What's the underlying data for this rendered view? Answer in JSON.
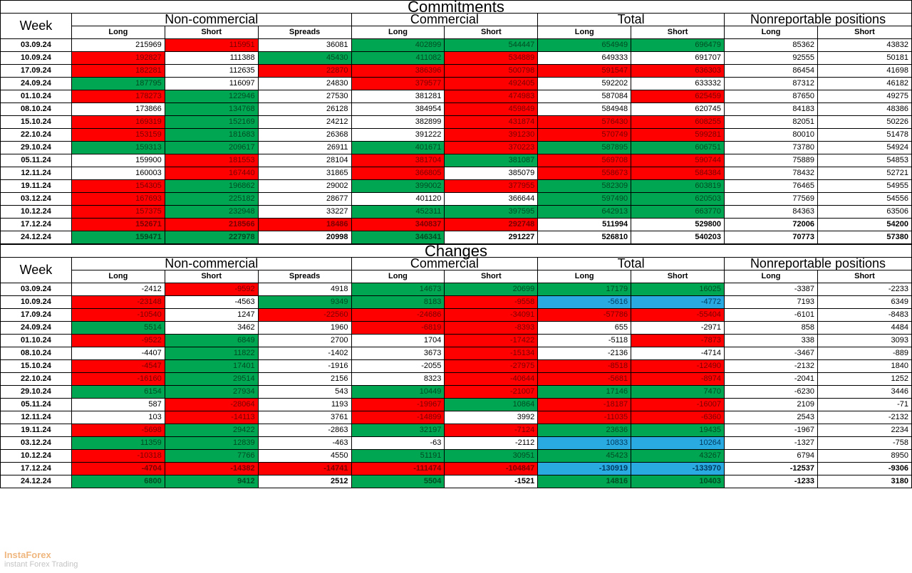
{
  "titles": {
    "t1": "Commitments",
    "t2": "Changes"
  },
  "headers": {
    "week": "Week",
    "groups": [
      "Non-commercial",
      "Commercial",
      "Total",
      "Nonreportable positions"
    ],
    "subs": [
      "Long",
      "Short",
      "Spreads",
      "Long",
      "Short",
      "Long",
      "Short",
      "Long",
      "Short"
    ]
  },
  "colors": {
    "red": "#ff0000",
    "green": "#00a651",
    "blue": "#29abe2"
  },
  "watermark": {
    "brand": "InstaForex",
    "tag": "instant Forex Trading"
  },
  "commitments": [
    {
      "wk": "03.09.24",
      "c": [
        [
          "215969",
          ""
        ],
        [
          "115951",
          "r"
        ],
        [
          "36081",
          ""
        ],
        [
          "402899",
          "g"
        ],
        [
          "544447",
          "g"
        ],
        [
          "654949",
          "g"
        ],
        [
          "696479",
          "g"
        ],
        [
          "85362",
          ""
        ],
        [
          "43832",
          ""
        ]
      ]
    },
    {
      "wk": "10.09.24",
      "c": [
        [
          "192827",
          "r"
        ],
        [
          "111388",
          ""
        ],
        [
          "45430",
          "g"
        ],
        [
          "411082",
          "g"
        ],
        [
          "534889",
          "r"
        ],
        [
          "649333",
          ""
        ],
        [
          "691707",
          ""
        ],
        [
          "92555",
          ""
        ],
        [
          "50181",
          ""
        ]
      ]
    },
    {
      "wk": "17.09.24",
      "c": [
        [
          "182281",
          "r"
        ],
        [
          "112635",
          ""
        ],
        [
          "22870",
          "r"
        ],
        [
          "386396",
          "r"
        ],
        [
          "500798",
          "r"
        ],
        [
          "591547",
          "r"
        ],
        [
          "636303",
          "r"
        ],
        [
          "86454",
          ""
        ],
        [
          "41698",
          ""
        ]
      ]
    },
    {
      "wk": "24.09.24",
      "c": [
        [
          "187795",
          "g"
        ],
        [
          "116097",
          ""
        ],
        [
          "24830",
          ""
        ],
        [
          "379577",
          "r"
        ],
        [
          "492405",
          "r"
        ],
        [
          "592202",
          ""
        ],
        [
          "633332",
          ""
        ],
        [
          "87312",
          ""
        ],
        [
          "46182",
          ""
        ]
      ]
    },
    {
      "wk": "01.10.24",
      "c": [
        [
          "178273",
          "r"
        ],
        [
          "122946",
          "g"
        ],
        [
          "27530",
          ""
        ],
        [
          "381281",
          ""
        ],
        [
          "474983",
          "r"
        ],
        [
          "587084",
          ""
        ],
        [
          "625459",
          "r"
        ],
        [
          "87650",
          ""
        ],
        [
          "49275",
          ""
        ]
      ]
    },
    {
      "wk": "08.10.24",
      "c": [
        [
          "173866",
          ""
        ],
        [
          "134768",
          "g"
        ],
        [
          "26128",
          ""
        ],
        [
          "384954",
          ""
        ],
        [
          "459849",
          "r"
        ],
        [
          "584948",
          ""
        ],
        [
          "620745",
          ""
        ],
        [
          "84183",
          ""
        ],
        [
          "48386",
          ""
        ]
      ]
    },
    {
      "wk": "15.10.24",
      "c": [
        [
          "169319",
          "r"
        ],
        [
          "152169",
          "g"
        ],
        [
          "24212",
          ""
        ],
        [
          "382899",
          ""
        ],
        [
          "431874",
          "r"
        ],
        [
          "576430",
          "r"
        ],
        [
          "608255",
          "r"
        ],
        [
          "82051",
          ""
        ],
        [
          "50226",
          ""
        ]
      ]
    },
    {
      "wk": "22.10.24",
      "c": [
        [
          "153159",
          "r"
        ],
        [
          "181683",
          "g"
        ],
        [
          "26368",
          ""
        ],
        [
          "391222",
          ""
        ],
        [
          "391230",
          "r"
        ],
        [
          "570749",
          "r"
        ],
        [
          "599281",
          "r"
        ],
        [
          "80010",
          ""
        ],
        [
          "51478",
          ""
        ]
      ]
    },
    {
      "wk": "29.10.24",
      "c": [
        [
          "159313",
          "g"
        ],
        [
          "209617",
          "g"
        ],
        [
          "26911",
          ""
        ],
        [
          "401671",
          "g"
        ],
        [
          "370223",
          "r"
        ],
        [
          "587895",
          "g"
        ],
        [
          "606751",
          "g"
        ],
        [
          "73780",
          ""
        ],
        [
          "54924",
          ""
        ]
      ]
    },
    {
      "wk": "05.11.24",
      "c": [
        [
          "159900",
          ""
        ],
        [
          "181553",
          "r"
        ],
        [
          "28104",
          ""
        ],
        [
          "381704",
          "r"
        ],
        [
          "381087",
          "g"
        ],
        [
          "569708",
          "r"
        ],
        [
          "590744",
          "r"
        ],
        [
          "75889",
          ""
        ],
        [
          "54853",
          ""
        ]
      ]
    },
    {
      "wk": "12.11.24",
      "c": [
        [
          "160003",
          ""
        ],
        [
          "167440",
          "r"
        ],
        [
          "31865",
          ""
        ],
        [
          "366805",
          "r"
        ],
        [
          "385079",
          ""
        ],
        [
          "558673",
          "r"
        ],
        [
          "584384",
          "r"
        ],
        [
          "78432",
          ""
        ],
        [
          "52721",
          ""
        ]
      ]
    },
    {
      "wk": "19.11.24",
      "c": [
        [
          "154305",
          "r"
        ],
        [
          "196862",
          "g"
        ],
        [
          "29002",
          ""
        ],
        [
          "399002",
          "g"
        ],
        [
          "377955",
          "r"
        ],
        [
          "582309",
          "g"
        ],
        [
          "603819",
          "g"
        ],
        [
          "76465",
          ""
        ],
        [
          "54955",
          ""
        ]
      ]
    },
    {
      "wk": "03.12.24",
      "c": [
        [
          "167693",
          "r"
        ],
        [
          "225182",
          "g"
        ],
        [
          "28677",
          ""
        ],
        [
          "401120",
          ""
        ],
        [
          "366644",
          ""
        ],
        [
          "597490",
          "g"
        ],
        [
          "620503",
          "g"
        ],
        [
          "77569",
          ""
        ],
        [
          "54556",
          ""
        ]
      ]
    },
    {
      "wk": "10.12.24",
      "c": [
        [
          "157375",
          "r"
        ],
        [
          "232948",
          "g"
        ],
        [
          "33227",
          ""
        ],
        [
          "452311",
          "g"
        ],
        [
          "397595",
          "g"
        ],
        [
          "642913",
          "g"
        ],
        [
          "663770",
          "g"
        ],
        [
          "84363",
          ""
        ],
        [
          "63506",
          ""
        ]
      ]
    },
    {
      "wk": "17.12.24",
      "c": [
        [
          "152671",
          "r"
        ],
        [
          "218566",
          "r"
        ],
        [
          "18486",
          "r"
        ],
        [
          "340837",
          "r"
        ],
        [
          "292748",
          "r"
        ],
        [
          "511994",
          ""
        ],
        [
          "529800",
          ""
        ],
        [
          "72006",
          ""
        ],
        [
          "54200",
          ""
        ]
      ],
      "bold": true
    },
    {
      "wk": "24.12.24",
      "c": [
        [
          "159471",
          "g"
        ],
        [
          "227978",
          "g"
        ],
        [
          "20998",
          ""
        ],
        [
          "346341",
          "g"
        ],
        [
          "291227",
          ""
        ],
        [
          "526810",
          ""
        ],
        [
          "540203",
          ""
        ],
        [
          "70773",
          ""
        ],
        [
          "57380",
          ""
        ]
      ],
      "bold": true
    }
  ],
  "changes": [
    {
      "wk": "03.09.24",
      "c": [
        [
          "-2412",
          ""
        ],
        [
          "-9592",
          "r"
        ],
        [
          "4918",
          ""
        ],
        [
          "14673",
          "g"
        ],
        [
          "20699",
          "g"
        ],
        [
          "17179",
          "g"
        ],
        [
          "16025",
          "g"
        ],
        [
          "-3387",
          ""
        ],
        [
          "-2233",
          ""
        ]
      ]
    },
    {
      "wk": "10.09.24",
      "c": [
        [
          "-23148",
          "r"
        ],
        [
          "-4563",
          ""
        ],
        [
          "9349",
          "g"
        ],
        [
          "8183",
          "g"
        ],
        [
          "-9558",
          "r"
        ],
        [
          "-5616",
          "b"
        ],
        [
          "-4772",
          "b"
        ],
        [
          "7193",
          ""
        ],
        [
          "6349",
          ""
        ]
      ]
    },
    {
      "wk": "17.09.24",
      "c": [
        [
          "-10540",
          "r"
        ],
        [
          "1247",
          ""
        ],
        [
          "-22560",
          "r"
        ],
        [
          "-24686",
          "r"
        ],
        [
          "-34091",
          "r"
        ],
        [
          "-57786",
          "r"
        ],
        [
          "-55404",
          "r"
        ],
        [
          "-6101",
          ""
        ],
        [
          "-8483",
          ""
        ]
      ]
    },
    {
      "wk": "24.09.24",
      "c": [
        [
          "5514",
          "g"
        ],
        [
          "3462",
          ""
        ],
        [
          "1960",
          ""
        ],
        [
          "-6819",
          "r"
        ],
        [
          "-8393",
          "r"
        ],
        [
          "655",
          ""
        ],
        [
          "-2971",
          ""
        ],
        [
          "858",
          ""
        ],
        [
          "4484",
          ""
        ]
      ]
    },
    {
      "wk": "01.10.24",
      "c": [
        [
          "-9522",
          "r"
        ],
        [
          "6849",
          "g"
        ],
        [
          "2700",
          ""
        ],
        [
          "1704",
          ""
        ],
        [
          "-17422",
          "r"
        ],
        [
          "-5118",
          ""
        ],
        [
          "-7873",
          "r"
        ],
        [
          "338",
          ""
        ],
        [
          "3093",
          ""
        ]
      ]
    },
    {
      "wk": "08.10.24",
      "c": [
        [
          "-4407",
          ""
        ],
        [
          "11822",
          "g"
        ],
        [
          "-1402",
          ""
        ],
        [
          "3673",
          ""
        ],
        [
          "-15134",
          "r"
        ],
        [
          "-2136",
          ""
        ],
        [
          "-4714",
          ""
        ],
        [
          "-3467",
          ""
        ],
        [
          "-889",
          ""
        ]
      ]
    },
    {
      "wk": "15.10.24",
      "c": [
        [
          "-4547",
          "r"
        ],
        [
          "17401",
          "g"
        ],
        [
          "-1916",
          ""
        ],
        [
          "-2055",
          ""
        ],
        [
          "-27975",
          "r"
        ],
        [
          "-8518",
          "r"
        ],
        [
          "-12490",
          "r"
        ],
        [
          "-2132",
          ""
        ],
        [
          "1840",
          ""
        ]
      ]
    },
    {
      "wk": "22.10.24",
      "c": [
        [
          "-16160",
          "r"
        ],
        [
          "29514",
          "g"
        ],
        [
          "2156",
          ""
        ],
        [
          "8323",
          ""
        ],
        [
          "-40644",
          "r"
        ],
        [
          "-5681",
          "r"
        ],
        [
          "-8974",
          "r"
        ],
        [
          "-2041",
          ""
        ],
        [
          "1252",
          ""
        ]
      ]
    },
    {
      "wk": "29.10.24",
      "c": [
        [
          "6154",
          "g"
        ],
        [
          "27934",
          "g"
        ],
        [
          "543",
          ""
        ],
        [
          "10449",
          "g"
        ],
        [
          "-21007",
          "r"
        ],
        [
          "17146",
          "g"
        ],
        [
          "7470",
          "g"
        ],
        [
          "-6230",
          ""
        ],
        [
          "3446",
          ""
        ]
      ]
    },
    {
      "wk": "05.11.24",
      "c": [
        [
          "587",
          ""
        ],
        [
          "-28064",
          "r"
        ],
        [
          "1193",
          ""
        ],
        [
          "-19967",
          "r"
        ],
        [
          "10864",
          "g"
        ],
        [
          "-18187",
          "r"
        ],
        [
          "-16007",
          "r"
        ],
        [
          "2109",
          ""
        ],
        [
          "-71",
          ""
        ]
      ]
    },
    {
      "wk": "12.11.24",
      "c": [
        [
          "103",
          ""
        ],
        [
          "-14113",
          "r"
        ],
        [
          "3761",
          ""
        ],
        [
          "-14899",
          "r"
        ],
        [
          "3992",
          ""
        ],
        [
          "-11035",
          "r"
        ],
        [
          "-6360",
          "r"
        ],
        [
          "2543",
          ""
        ],
        [
          "-2132",
          ""
        ]
      ]
    },
    {
      "wk": "19.11.24",
      "c": [
        [
          "-5698",
          "r"
        ],
        [
          "29422",
          "g"
        ],
        [
          "-2863",
          ""
        ],
        [
          "32197",
          "g"
        ],
        [
          "-7124",
          "r"
        ],
        [
          "23636",
          "g"
        ],
        [
          "19435",
          "g"
        ],
        [
          "-1967",
          ""
        ],
        [
          "2234",
          ""
        ]
      ]
    },
    {
      "wk": "03.12.24",
      "c": [
        [
          "11359",
          "g"
        ],
        [
          "12839",
          "g"
        ],
        [
          "-463",
          ""
        ],
        [
          "-63",
          ""
        ],
        [
          "-2112",
          ""
        ],
        [
          "10833",
          "b"
        ],
        [
          "10264",
          "b"
        ],
        [
          "-1327",
          ""
        ],
        [
          "-758",
          ""
        ]
      ]
    },
    {
      "wk": "10.12.24",
      "c": [
        [
          "-10318",
          "r"
        ],
        [
          "7766",
          "g"
        ],
        [
          "4550",
          ""
        ],
        [
          "51191",
          "g"
        ],
        [
          "30951",
          "g"
        ],
        [
          "45423",
          "g"
        ],
        [
          "43267",
          "g"
        ],
        [
          "6794",
          ""
        ],
        [
          "8950",
          ""
        ]
      ]
    },
    {
      "wk": "17.12.24",
      "c": [
        [
          "-4704",
          "r"
        ],
        [
          "-14382",
          "r"
        ],
        [
          "-14741",
          "r"
        ],
        [
          "-111474",
          "r"
        ],
        [
          "-104847",
          "r"
        ],
        [
          "-130919",
          "b"
        ],
        [
          "-133970",
          "b"
        ],
        [
          "-12537",
          ""
        ],
        [
          "-9306",
          ""
        ]
      ],
      "bold": true
    },
    {
      "wk": "24.12.24",
      "c": [
        [
          "6800",
          "g"
        ],
        [
          "9412",
          "g"
        ],
        [
          "2512",
          ""
        ],
        [
          "5504",
          "g"
        ],
        [
          "-1521",
          ""
        ],
        [
          "14816",
          "g"
        ],
        [
          "10403",
          "g"
        ],
        [
          "-1233",
          ""
        ],
        [
          "3180",
          ""
        ]
      ],
      "bold": true
    }
  ]
}
